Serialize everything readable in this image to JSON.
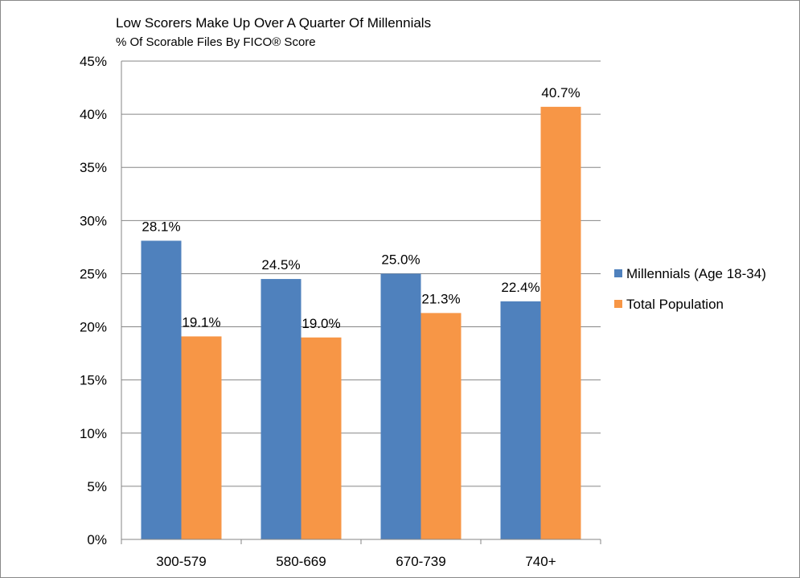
{
  "chart_data": {
    "type": "bar",
    "title": "Low Scorers Make Up Over A Quarter Of Millennials",
    "subtitle": "% Of Scorable Files By FICO® Score",
    "xlabel": "",
    "ylabel": "",
    "categories": [
      "300-579",
      "580-669",
      "670-739",
      "740+"
    ],
    "series": [
      {
        "name": "Millennials (Age 18-34)",
        "color": "#4F81BD",
        "values": [
          28.1,
          24.5,
          25.0,
          22.4
        ],
        "labels": [
          "28.1%",
          "24.5%",
          "25.0%",
          "22.4%"
        ]
      },
      {
        "name": "Total Population",
        "color": "#F79646",
        "values": [
          19.1,
          19.0,
          21.3,
          40.7
        ],
        "labels": [
          "19.1%",
          "19.0%",
          "21.3%",
          "40.7%"
        ]
      }
    ],
    "ylim": [
      0,
      45
    ],
    "yticks": [
      0,
      5,
      10,
      15,
      20,
      25,
      30,
      35,
      40,
      45
    ],
    "ytick_labels": [
      "0%",
      "5%",
      "10%",
      "15%",
      "20%",
      "25%",
      "30%",
      "35%",
      "40%",
      "45%"
    ],
    "grid": true,
    "legend_position": "right"
  }
}
